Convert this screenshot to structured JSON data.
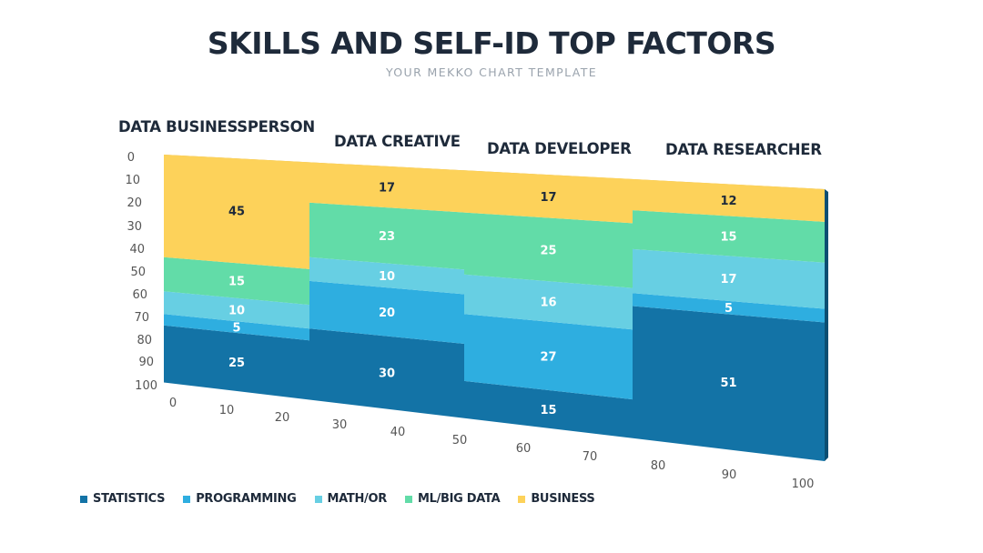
{
  "title": "SKILLS AND SELF-ID TOP FACTORS",
  "subtitle": "YOUR MEKKO CHART TEMPLATE",
  "colors": {
    "statistics": "#1373a6",
    "programming": "#2eaee0",
    "math_or": "#67cfe3",
    "ml_big_data": "#62dca8",
    "business": "#fdd25a"
  },
  "chart_data": {
    "type": "mekko",
    "title": "SKILLS AND SELF-ID TOP FACTORS",
    "subtitle": "YOUR MEKKO CHART TEMPLATE",
    "x_ticks": [
      "0",
      "10",
      "20",
      "30",
      "40",
      "50",
      "60",
      "70",
      "80",
      "90",
      "100"
    ],
    "y_ticks": [
      "0",
      "10",
      "20",
      "30",
      "40",
      "50",
      "60",
      "70",
      "80",
      "90",
      "100"
    ],
    "ylim": [
      0,
      100
    ],
    "categories": [
      "DATA BUSINESSPERSON",
      "DATA CREATIVE",
      "DATA DEVELOPER",
      "DATA RESEARCHER"
    ],
    "category_widths": [
      25,
      25,
      25,
      25
    ],
    "series": [
      {
        "name": "STATISTICS",
        "values": [
          25,
          30,
          15,
          51
        ]
      },
      {
        "name": "PROGRAMMING",
        "values": [
          5,
          20,
          27,
          5
        ]
      },
      {
        "name": "MATH/OR",
        "values": [
          10,
          10,
          16,
          17
        ]
      },
      {
        "name": "ML/BIG DATA",
        "values": [
          15,
          23,
          25,
          15
        ]
      },
      {
        "name": "BUSINESS",
        "values": [
          45,
          17,
          17,
          12
        ]
      }
    ],
    "legend_position": "bottom-left"
  }
}
